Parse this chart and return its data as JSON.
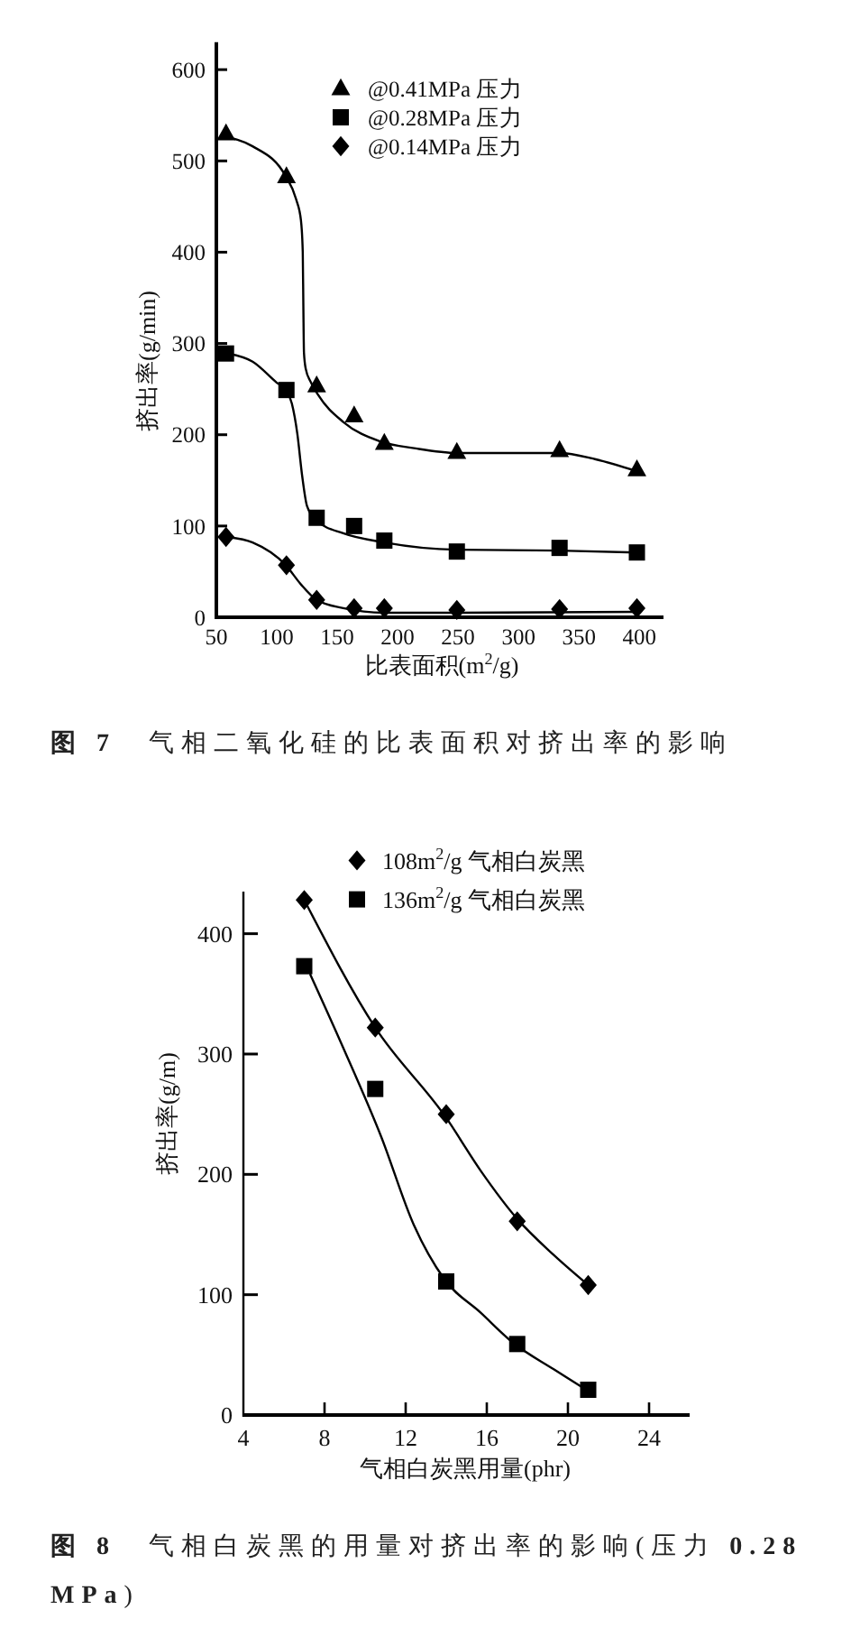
{
  "chart_data": [
    {
      "type": "scatter",
      "xlabel": "比表面积(m$^{2}$/g)",
      "ylabel": "挤出率(g/min)",
      "annotations": [
        "**图 7**　气相二氧化硅的比表面积对挤出率的影响"
      ],
      "xlim": [
        50,
        420
      ],
      "ylim": [
        0,
        630
      ],
      "xticks": [
        50,
        100,
        150,
        200,
        250,
        300,
        350,
        400
      ],
      "yticks": [
        0,
        100,
        200,
        300,
        400,
        500,
        600
      ],
      "legend": "top",
      "series": [
        {
          "name": "@0.41MPa 压力",
          "color": "#000000",
          "marker": "triangle",
          "x": [
            58,
            108,
            133,
            164,
            189,
            249,
            334,
            398
          ],
          "values": [
            530,
            483,
            254,
            221,
            191,
            181,
            183,
            162
          ]
        },
        {
          "name": "@0.28MPa 压力",
          "color": "#000000",
          "marker": "square",
          "x": [
            58,
            108,
            133,
            164,
            189,
            249,
            334,
            398
          ],
          "values": [
            289,
            249,
            109,
            100,
            84,
            72,
            76,
            71
          ]
        },
        {
          "name": "@0.14MPa 压力",
          "color": "#000000",
          "marker": "diamond",
          "x": [
            58,
            108,
            133,
            164,
            189,
            249,
            334,
            398
          ],
          "values": [
            88,
            57,
            19,
            10,
            10,
            8,
            9,
            10
          ]
        },
        {
          "type": "line",
          "color": "#000000",
          "marker": "none",
          "line_style": "solid",
          "x": [
            55,
            80,
            107.5,
            116,
            120,
            121.5,
            122,
            122.5,
            124,
            128,
            134,
            155,
            185,
            215,
            249,
            334,
            364,
            398
          ],
          "values": [
            527,
            516,
            483,
            458,
            435,
            400,
            340,
            290,
            272,
            258,
            244,
            214,
            193,
            185,
            180,
            180,
            173,
            160
          ]
        },
        {
          "type": "line",
          "color": "#000000",
          "marker": "none",
          "line_style": "solid",
          "x": [
            59,
            80,
            100,
            107.5,
            112.5,
            117,
            121,
            125,
            133,
            155,
            189,
            249,
            334,
            398
          ],
          "values": [
            289,
            280,
            257,
            249,
            234,
            201,
            155,
            122,
            106,
            92,
            82,
            74,
            73,
            71
          ]
        },
        {
          "type": "line",
          "color": "#000000",
          "marker": "none",
          "line_style": "solid",
          "x": [
            59,
            80,
            107.5,
            120,
            133,
            155,
            189,
            249,
            398
          ],
          "values": [
            88,
            82,
            57,
            36,
            19,
            10,
            5,
            5,
            6
          ]
        }
      ]
    },
    {
      "type": "scatter",
      "xlabel": "气相白炭黑用量(phr)",
      "ylabel": "挤出率(g/m)",
      "annotations": [
        "**图 8**　气相白炭黑的用量对挤出率的影响(压力 **0.28 MPa**)"
      ],
      "xlim": [
        4,
        26
      ],
      "ylim": [
        0,
        435
      ],
      "xticks": [
        4,
        8,
        12,
        16,
        20,
        24
      ],
      "yticks": [
        0,
        100,
        200,
        300,
        400
      ],
      "legend": "top",
      "series": [
        {
          "name": "108m$^{2}$/g 气相白炭黑",
          "color": "#000000",
          "marker": "diamond",
          "x": [
            7,
            10.5,
            14,
            17.5,
            21
          ],
          "values": [
            428,
            322,
            250,
            161,
            108
          ]
        },
        {
          "name": "136m$^{2}$/g 气相白炭黑",
          "color": "#000000",
          "marker": "square",
          "x": [
            7,
            10.5,
            14,
            17.5,
            21
          ],
          "values": [
            373,
            271,
            111,
            59,
            21
          ]
        },
        {
          "type": "line",
          "color": "#000000",
          "marker": "none",
          "line_style": "solid",
          "x": [
            7,
            10.5,
            14,
            15.7,
            17.5,
            19.3,
            21
          ],
          "values": [
            428,
            322,
            247,
            203,
            163,
            133,
            108
          ]
        },
        {
          "type": "line",
          "color": "#000000",
          "marker": "none",
          "line_style": "solid",
          "x": [
            7.3,
            8.9,
            10.8,
            12.4,
            13.9,
            15.7,
            17.3,
            19.3,
            20.9
          ],
          "values": [
            366,
            306,
            231,
            158,
            113,
            85,
            60,
            38,
            21
          ]
        }
      ]
    }
  ]
}
